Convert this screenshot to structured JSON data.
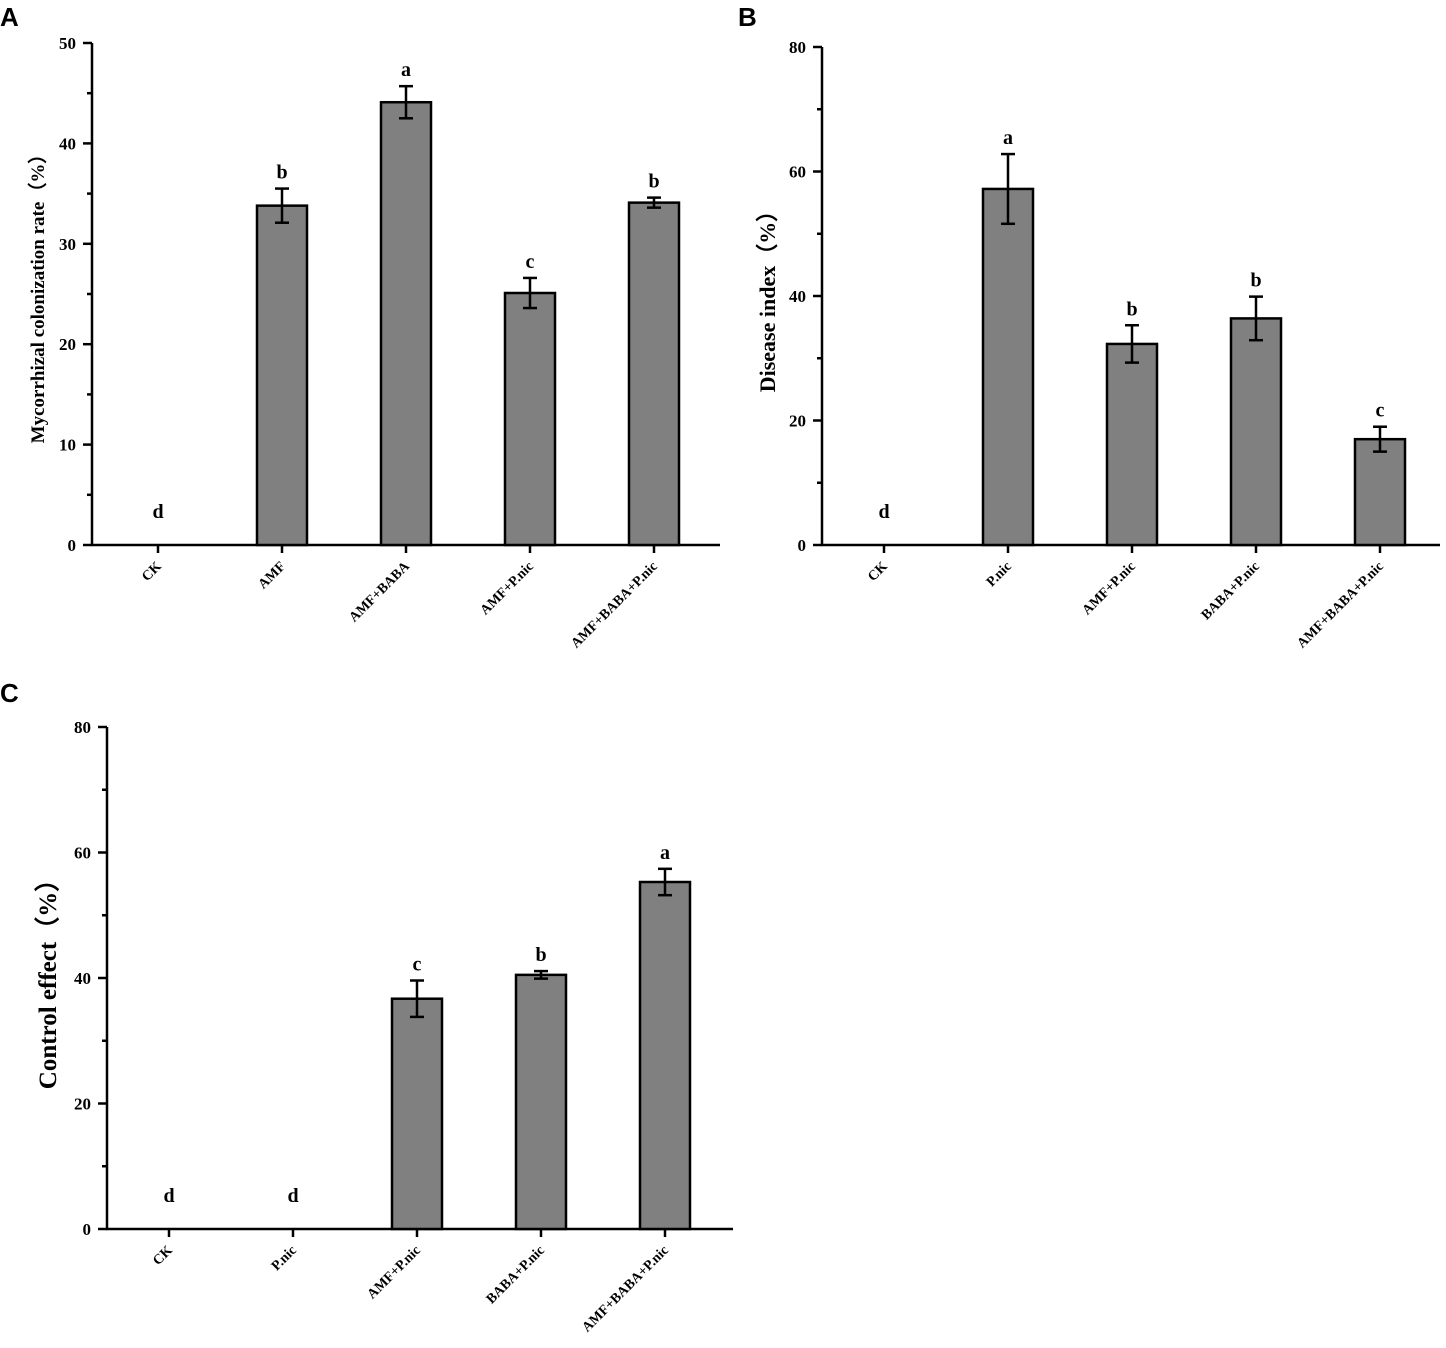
{
  "chart_data": [
    {
      "panel": "A",
      "type": "bar",
      "categories": [
        "CK",
        "AMF",
        "AMF+BABA",
        "AMF+P.nic",
        "AMF+BABA+P.nic"
      ],
      "values": [
        0,
        33.8,
        44.1,
        25.1,
        34.1
      ],
      "errors": [
        0,
        1.7,
        1.6,
        1.5,
        0.5
      ],
      "significance": [
        "d",
        "b",
        "a",
        "c",
        "b"
      ],
      "ylabel": "Mycorrhizal colonization rate（%）",
      "xlabel": "",
      "title": "",
      "ylim": [
        0,
        50
      ],
      "yticks": [
        0,
        10,
        20,
        30,
        40,
        50
      ],
      "grid": false,
      "bar_color": "#808080"
    },
    {
      "panel": "B",
      "type": "bar",
      "categories": [
        "CK",
        "P.nic",
        "AMF+P.nic",
        "BABA+P.nic",
        "AMF+BABA+P.nic"
      ],
      "values": [
        0,
        57.2,
        32.3,
        36.4,
        17.0
      ],
      "errors": [
        0,
        5.6,
        3.0,
        3.5,
        2.0
      ],
      "significance": [
        "d",
        "a",
        "b",
        "b",
        "c"
      ],
      "ylabel": "Disease index（%）",
      "xlabel": "",
      "title": "",
      "ylim": [
        0,
        80
      ],
      "yticks": [
        0,
        20,
        40,
        60,
        80
      ],
      "grid": false,
      "bar_color": "#808080"
    },
    {
      "panel": "C",
      "type": "bar",
      "categories": [
        "CK",
        "P.nic",
        "AMF+P.nic",
        "BABA+P.nic",
        "AMF+BABA+P.nic"
      ],
      "values": [
        0,
        0,
        36.7,
        40.5,
        55.3
      ],
      "errors": [
        0,
        0,
        2.9,
        0.6,
        2.1
      ],
      "significance": [
        "d",
        "d",
        "c",
        "b",
        "a"
      ],
      "ylabel": "Control effect（%）",
      "xlabel": "",
      "title": "",
      "ylim": [
        0,
        80
      ],
      "yticks": [
        0,
        20,
        40,
        60,
        80
      ],
      "grid": false,
      "bar_color": "#808080"
    }
  ]
}
